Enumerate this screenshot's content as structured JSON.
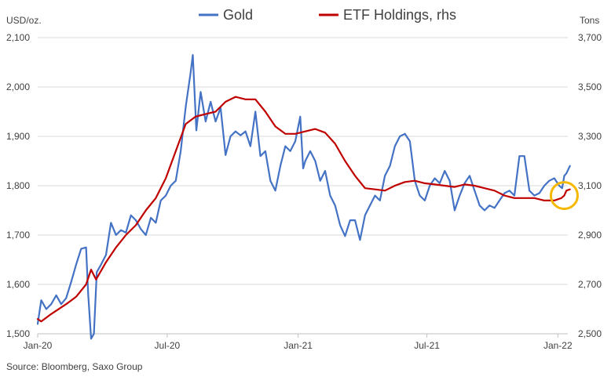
{
  "chart_data": {
    "type": "line",
    "legend_position": "top-center",
    "grid": "horizontal",
    "left_axis": {
      "unit_label": "USD/oz.",
      "range": [
        1500,
        2100
      ],
      "ticks": [
        1500,
        1600,
        1700,
        1800,
        1900,
        2000,
        2100
      ],
      "tick_labels": [
        "1,500",
        "1,600",
        "1,700",
        "1,800",
        "1,900",
        "2,000",
        "2,100"
      ]
    },
    "right_axis": {
      "unit_label": "Tons",
      "range": [
        2500,
        3700
      ],
      "ticks": [
        2500,
        2700,
        2900,
        3100,
        3300,
        3500,
        3700
      ],
      "tick_labels": [
        "2,500",
        "2,700",
        "2,900",
        "3,100",
        "3,300",
        "3,500",
        "3,700"
      ]
    },
    "x_axis": {
      "range": [
        "2020-01-01",
        "2022-01-15"
      ],
      "ticks": [
        "2020-01-01",
        "2020-07-01",
        "2021-01-01",
        "2021-07-01",
        "2022-01-01"
      ],
      "tick_labels": [
        "Jan-20",
        "Jul-20",
        "Jan-21",
        "Jul-21",
        "Jan-22"
      ]
    },
    "series": [
      {
        "name": "Gold",
        "axis": "left",
        "color": "#4472C4",
        "points": [
          [
            "2020-01-01",
            1520
          ],
          [
            "2020-01-06",
            1568
          ],
          [
            "2020-01-13",
            1550
          ],
          [
            "2020-01-20",
            1560
          ],
          [
            "2020-01-27",
            1578
          ],
          [
            "2020-02-03",
            1560
          ],
          [
            "2020-02-10",
            1572
          ],
          [
            "2020-02-17",
            1605
          ],
          [
            "2020-02-24",
            1640
          ],
          [
            "2020-03-02",
            1672
          ],
          [
            "2020-03-09",
            1675
          ],
          [
            "2020-03-12",
            1580
          ],
          [
            "2020-03-16",
            1490
          ],
          [
            "2020-03-20",
            1500
          ],
          [
            "2020-03-24",
            1625
          ],
          [
            "2020-03-30",
            1640
          ],
          [
            "2020-04-06",
            1660
          ],
          [
            "2020-04-13",
            1725
          ],
          [
            "2020-04-20",
            1700
          ],
          [
            "2020-04-27",
            1710
          ],
          [
            "2020-05-04",
            1705
          ],
          [
            "2020-05-11",
            1740
          ],
          [
            "2020-05-18",
            1730
          ],
          [
            "2020-05-25",
            1712
          ],
          [
            "2020-06-01",
            1700
          ],
          [
            "2020-06-08",
            1735
          ],
          [
            "2020-06-15",
            1725
          ],
          [
            "2020-06-22",
            1770
          ],
          [
            "2020-06-29",
            1780
          ],
          [
            "2020-07-06",
            1800
          ],
          [
            "2020-07-13",
            1810
          ],
          [
            "2020-07-20",
            1870
          ],
          [
            "2020-07-27",
            1960
          ],
          [
            "2020-08-03",
            2030
          ],
          [
            "2020-08-06",
            2065
          ],
          [
            "2020-08-11",
            1912
          ],
          [
            "2020-08-17",
            1990
          ],
          [
            "2020-08-24",
            1930
          ],
          [
            "2020-08-31",
            1970
          ],
          [
            "2020-09-07",
            1930
          ],
          [
            "2020-09-14",
            1958
          ],
          [
            "2020-09-21",
            1862
          ],
          [
            "2020-09-28",
            1900
          ],
          [
            "2020-10-05",
            1910
          ],
          [
            "2020-10-12",
            1902
          ],
          [
            "2020-10-19",
            1910
          ],
          [
            "2020-10-26",
            1880
          ],
          [
            "2020-11-02",
            1950
          ],
          [
            "2020-11-09",
            1860
          ],
          [
            "2020-11-16",
            1870
          ],
          [
            "2020-11-23",
            1810
          ],
          [
            "2020-11-30",
            1790
          ],
          [
            "2020-12-07",
            1840
          ],
          [
            "2020-12-14",
            1880
          ],
          [
            "2020-12-21",
            1870
          ],
          [
            "2020-12-28",
            1890
          ],
          [
            "2021-01-04",
            1940
          ],
          [
            "2021-01-08",
            1835
          ],
          [
            "2021-01-11",
            1850
          ],
          [
            "2021-01-18",
            1870
          ],
          [
            "2021-01-25",
            1850
          ],
          [
            "2021-02-01",
            1810
          ],
          [
            "2021-02-08",
            1830
          ],
          [
            "2021-02-15",
            1780
          ],
          [
            "2021-02-22",
            1760
          ],
          [
            "2021-03-01",
            1720
          ],
          [
            "2021-03-08",
            1698
          ],
          [
            "2021-03-15",
            1730
          ],
          [
            "2021-03-22",
            1730
          ],
          [
            "2021-03-29",
            1690
          ],
          [
            "2021-04-05",
            1740
          ],
          [
            "2021-04-12",
            1760
          ],
          [
            "2021-04-19",
            1780
          ],
          [
            "2021-04-26",
            1770
          ],
          [
            "2021-05-03",
            1820
          ],
          [
            "2021-05-10",
            1840
          ],
          [
            "2021-05-17",
            1880
          ],
          [
            "2021-05-24",
            1900
          ],
          [
            "2021-05-31",
            1905
          ],
          [
            "2021-06-07",
            1890
          ],
          [
            "2021-06-14",
            1810
          ],
          [
            "2021-06-21",
            1780
          ],
          [
            "2021-06-28",
            1770
          ],
          [
            "2021-07-05",
            1800
          ],
          [
            "2021-07-12",
            1815
          ],
          [
            "2021-07-19",
            1805
          ],
          [
            "2021-07-26",
            1830
          ],
          [
            "2021-08-02",
            1810
          ],
          [
            "2021-08-09",
            1750
          ],
          [
            "2021-08-16",
            1780
          ],
          [
            "2021-08-23",
            1805
          ],
          [
            "2021-08-30",
            1820
          ],
          [
            "2021-09-06",
            1790
          ],
          [
            "2021-09-13",
            1760
          ],
          [
            "2021-09-20",
            1750
          ],
          [
            "2021-09-27",
            1760
          ],
          [
            "2021-10-04",
            1755
          ],
          [
            "2021-10-11",
            1770
          ],
          [
            "2021-10-18",
            1785
          ],
          [
            "2021-10-25",
            1790
          ],
          [
            "2021-11-01",
            1780
          ],
          [
            "2021-11-08",
            1860
          ],
          [
            "2021-11-15",
            1860
          ],
          [
            "2021-11-22",
            1790
          ],
          [
            "2021-11-29",
            1780
          ],
          [
            "2021-12-06",
            1785
          ],
          [
            "2021-12-13",
            1800
          ],
          [
            "2021-12-20",
            1810
          ],
          [
            "2021-12-27",
            1815
          ],
          [
            "2022-01-03",
            1800
          ],
          [
            "2022-01-07",
            1795
          ],
          [
            "2022-01-10",
            1820
          ],
          [
            "2022-01-13",
            1825
          ],
          [
            "2022-01-18",
            1840
          ]
        ]
      },
      {
        "name": "ETF Holdings, rhs",
        "axis": "right",
        "color": "#C00000",
        "points": [
          [
            "2020-01-01",
            2560
          ],
          [
            "2020-01-06",
            2550
          ],
          [
            "2020-01-20",
            2580
          ],
          [
            "2020-02-10",
            2620
          ],
          [
            "2020-02-24",
            2650
          ],
          [
            "2020-03-09",
            2700
          ],
          [
            "2020-03-16",
            2760
          ],
          [
            "2020-03-23",
            2720
          ],
          [
            "2020-04-06",
            2790
          ],
          [
            "2020-04-20",
            2850
          ],
          [
            "2020-05-04",
            2900
          ],
          [
            "2020-05-18",
            2940
          ],
          [
            "2020-06-01",
            3000
          ],
          [
            "2020-06-15",
            3050
          ],
          [
            "2020-06-29",
            3130
          ],
          [
            "2020-07-13",
            3240
          ],
          [
            "2020-07-27",
            3350
          ],
          [
            "2020-08-10",
            3380
          ],
          [
            "2020-08-24",
            3390
          ],
          [
            "2020-09-07",
            3400
          ],
          [
            "2020-09-21",
            3440
          ],
          [
            "2020-10-05",
            3460
          ],
          [
            "2020-10-19",
            3450
          ],
          [
            "2020-11-02",
            3450
          ],
          [
            "2020-11-16",
            3400
          ],
          [
            "2020-11-30",
            3340
          ],
          [
            "2020-12-14",
            3310
          ],
          [
            "2020-12-28",
            3310
          ],
          [
            "2021-01-11",
            3320
          ],
          [
            "2021-01-25",
            3330
          ],
          [
            "2021-02-08",
            3315
          ],
          [
            "2021-02-22",
            3270
          ],
          [
            "2021-03-08",
            3200
          ],
          [
            "2021-03-22",
            3140
          ],
          [
            "2021-04-05",
            3090
          ],
          [
            "2021-04-19",
            3085
          ],
          [
            "2021-05-03",
            3080
          ],
          [
            "2021-05-17",
            3100
          ],
          [
            "2021-05-31",
            3115
          ],
          [
            "2021-06-14",
            3120
          ],
          [
            "2021-06-28",
            3110
          ],
          [
            "2021-07-12",
            3105
          ],
          [
            "2021-07-26",
            3100
          ],
          [
            "2021-08-09",
            3095
          ],
          [
            "2021-08-23",
            3105
          ],
          [
            "2021-09-06",
            3100
          ],
          [
            "2021-09-20",
            3090
          ],
          [
            "2021-10-04",
            3080
          ],
          [
            "2021-10-18",
            3060
          ],
          [
            "2021-11-01",
            3050
          ],
          [
            "2021-11-15",
            3050
          ],
          [
            "2021-11-29",
            3050
          ],
          [
            "2021-12-13",
            3040
          ],
          [
            "2021-12-27",
            3040
          ],
          [
            "2022-01-06",
            3050
          ],
          [
            "2022-01-10",
            3060
          ],
          [
            "2022-01-13",
            3080
          ],
          [
            "2022-01-18",
            3085
          ]
        ]
      }
    ],
    "annotations": [
      {
        "type": "circle",
        "color": "#F5B800",
        "x": "2022-01-10",
        "y_right": 3060
      }
    ]
  },
  "footer": {
    "source": "Source: Bloomberg, Saxo Group"
  }
}
